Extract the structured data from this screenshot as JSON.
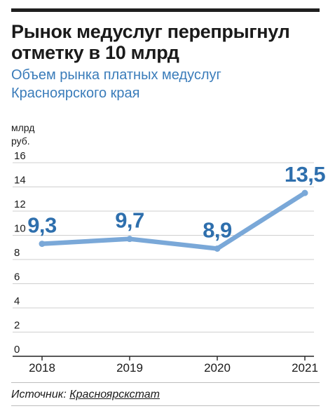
{
  "header": {
    "title": "Рынок медуслуг перепрыгнул отметку в 10 млрд",
    "subtitle": "Объем рынка платных медуслуг Красноярского края"
  },
  "footer": {
    "source_label": "Источник:",
    "source_name": "Красноярскстат"
  },
  "chart_data": {
    "type": "line",
    "title": "Рынок медуслуг перепрыгнул отметку в 10 млрд",
    "subtitle": "Объем рынка платных медуслуг Красноярского края",
    "ylabel": "млрд руб.",
    "ylabel_lines": [
      "млрд",
      "руб."
    ],
    "xlabel": "",
    "categories": [
      "2018",
      "2019",
      "2020",
      "2021"
    ],
    "x": [
      2018,
      2019,
      2020,
      2021
    ],
    "values": [
      9.3,
      9.7,
      8.9,
      13.5
    ],
    "data_labels": [
      "9,3",
      "9,7",
      "8,9",
      "13,5"
    ],
    "ylim": [
      0,
      16
    ],
    "yticks": [
      0,
      2,
      4,
      6,
      8,
      10,
      12,
      14,
      16
    ],
    "grid": true,
    "area_fill": "vertical-hatch",
    "colors": {
      "line": "#7aa8d8",
      "labels": "#2e6fad",
      "hatch": "#b8bcc2",
      "grid": "#cfcfcf",
      "axis": "#222222"
    }
  }
}
